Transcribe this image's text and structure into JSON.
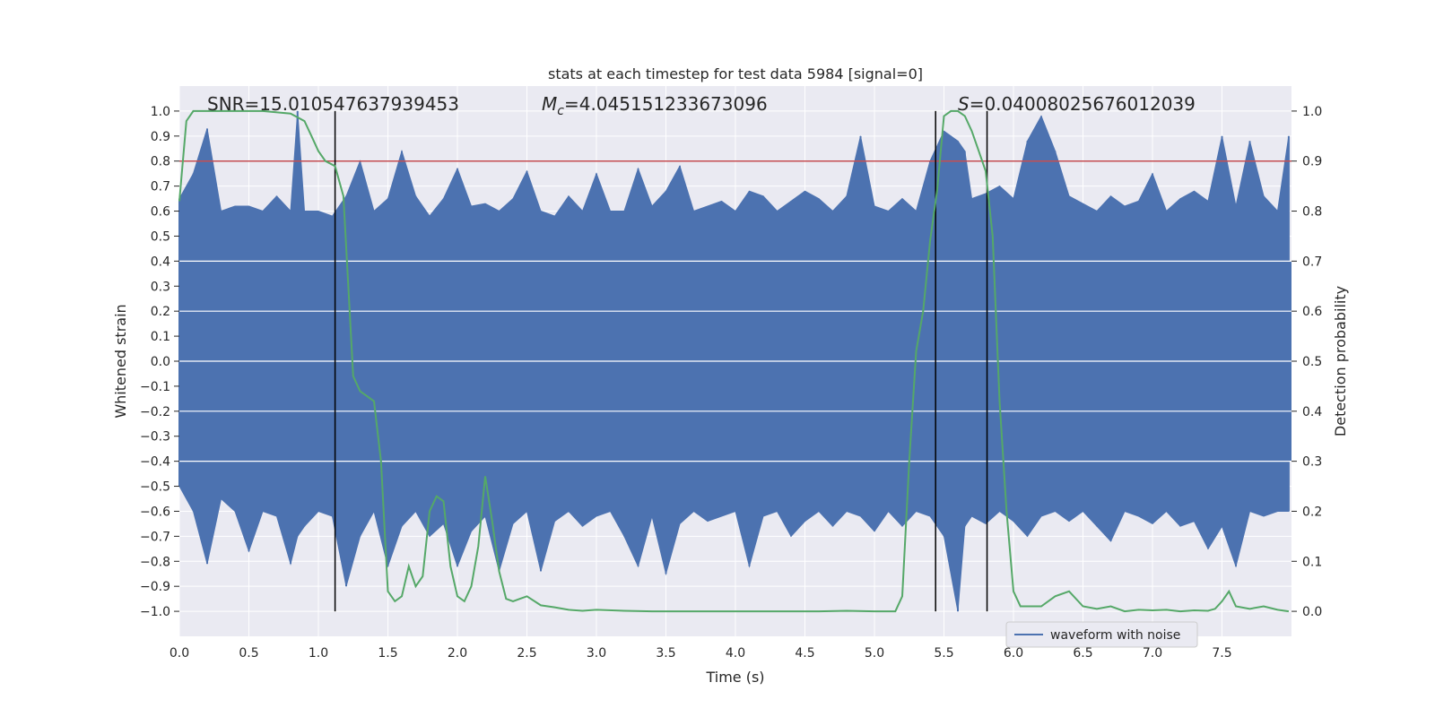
{
  "chart_data": {
    "type": "line",
    "title": "stats at each timestep for test data 5984 [signal=0]",
    "xlabel": "Time (s)",
    "ylabel_left": "Whitened strain",
    "ylabel_right": "Detection probability",
    "xlim": [
      0,
      8
    ],
    "ylim_left": [
      -1.1,
      1.1
    ],
    "ylim_right": [
      -0.05,
      1.05
    ],
    "xticks": [
      "0.0",
      "0.5",
      "1.0",
      "1.5",
      "2.0",
      "2.5",
      "3.0",
      "3.5",
      "4.0",
      "4.5",
      "5.0",
      "5.5",
      "6.0",
      "6.5",
      "7.0",
      "7.5"
    ],
    "yticks_left": [
      "−1.0",
      "−0.9",
      "−0.8",
      "−0.7",
      "−0.6",
      "−0.5",
      "−0.4",
      "−0.3",
      "−0.2",
      "−0.1",
      "0.0",
      "0.1",
      "0.2",
      "0.3",
      "0.4",
      "0.5",
      "0.6",
      "0.7",
      "0.8",
      "0.9",
      "1.0"
    ],
    "yticks_right": [
      "0.0",
      "0.1",
      "0.2",
      "0.3",
      "0.4",
      "0.5",
      "0.6",
      "0.7",
      "0.8",
      "0.9",
      "1.0"
    ],
    "grid": true,
    "legend_position": "lower-right",
    "annotations": {
      "snr": "SNR=15.010547637939453",
      "mc_symbol": "M",
      "mc_subscript": "c",
      "mc_value": "=4.045151233673096",
      "s_symbol": "S",
      "s_value": "=0.04008025676012039"
    },
    "threshold_right": 0.9,
    "vertical_lines_x": [
      1.12,
      5.44,
      5.81
    ],
    "series": [
      {
        "name": "waveform with noise",
        "color": "#4c72b0",
        "axis": "left",
        "x": [
          0.0,
          0.1,
          0.2,
          0.3,
          0.4,
          0.5,
          0.6,
          0.7,
          0.8,
          0.85,
          0.9,
          1.0,
          1.1,
          1.2,
          1.3,
          1.4,
          1.5,
          1.6,
          1.7,
          1.8,
          1.9,
          2.0,
          2.1,
          2.2,
          2.3,
          2.4,
          2.5,
          2.6,
          2.7,
          2.8,
          2.9,
          3.0,
          3.1,
          3.2,
          3.3,
          3.4,
          3.5,
          3.6,
          3.7,
          3.8,
          3.9,
          4.0,
          4.1,
          4.2,
          4.3,
          4.4,
          4.5,
          4.6,
          4.7,
          4.8,
          4.9,
          5.0,
          5.1,
          5.2,
          5.3,
          5.4,
          5.5,
          5.6,
          5.65,
          5.7,
          5.8,
          5.9,
          6.0,
          6.1,
          6.2,
          6.3,
          6.4,
          6.5,
          6.6,
          6.7,
          6.8,
          6.9,
          7.0,
          7.1,
          7.2,
          7.3,
          7.4,
          7.5,
          7.6,
          7.7,
          7.8,
          7.9,
          7.98
        ],
        "upper": [
          0.65,
          0.75,
          0.93,
          0.6,
          0.62,
          0.62,
          0.6,
          0.66,
          0.6,
          1.0,
          0.6,
          0.6,
          0.58,
          0.66,
          0.8,
          0.6,
          0.65,
          0.84,
          0.66,
          0.58,
          0.65,
          0.77,
          0.62,
          0.63,
          0.6,
          0.65,
          0.76,
          0.6,
          0.58,
          0.66,
          0.6,
          0.75,
          0.6,
          0.6,
          0.77,
          0.62,
          0.68,
          0.78,
          0.6,
          0.62,
          0.64,
          0.6,
          0.68,
          0.66,
          0.6,
          0.64,
          0.68,
          0.65,
          0.6,
          0.66,
          0.9,
          0.62,
          0.6,
          0.65,
          0.6,
          0.8,
          0.92,
          0.88,
          0.84,
          0.65,
          0.67,
          0.7,
          0.65,
          0.88,
          0.98,
          0.84,
          0.66,
          0.63,
          0.6,
          0.66,
          0.62,
          0.64,
          0.75,
          0.6,
          0.65,
          0.68,
          0.64,
          0.9,
          0.62,
          0.88,
          0.66,
          0.6,
          0.9
        ],
        "lower": [
          -0.5,
          -0.6,
          -0.81,
          -0.55,
          -0.6,
          -0.76,
          -0.6,
          -0.62,
          -0.81,
          -0.7,
          -0.66,
          -0.6,
          -0.62,
          -0.9,
          -0.7,
          -0.6,
          -0.82,
          -0.66,
          -0.6,
          -0.7,
          -0.65,
          -0.82,
          -0.68,
          -0.62,
          -0.84,
          -0.65,
          -0.6,
          -0.84,
          -0.64,
          -0.6,
          -0.66,
          -0.62,
          -0.6,
          -0.7,
          -0.82,
          -0.62,
          -0.85,
          -0.65,
          -0.6,
          -0.64,
          -0.62,
          -0.6,
          -0.82,
          -0.62,
          -0.6,
          -0.7,
          -0.64,
          -0.6,
          -0.66,
          -0.6,
          -0.62,
          -0.68,
          -0.6,
          -0.66,
          -0.6,
          -0.62,
          -0.7,
          -1.0,
          -0.66,
          -0.62,
          -0.65,
          -0.6,
          -0.64,
          -0.7,
          -0.62,
          -0.6,
          -0.64,
          -0.6,
          -0.66,
          -0.72,
          -0.6,
          -0.62,
          -0.65,
          -0.6,
          -0.66,
          -0.64,
          -0.75,
          -0.66,
          -0.82,
          -0.6,
          -0.62,
          -0.6,
          -0.6
        ]
      },
      {
        "name": "",
        "color": "#55a868",
        "axis": "right",
        "x": [
          0.0,
          0.05,
          0.1,
          0.2,
          0.4,
          0.6,
          0.8,
          0.9,
          0.95,
          1.0,
          1.05,
          1.12,
          1.18,
          1.25,
          1.3,
          1.35,
          1.4,
          1.45,
          1.5,
          1.55,
          1.6,
          1.65,
          1.7,
          1.75,
          1.8,
          1.85,
          1.9,
          1.95,
          2.0,
          2.05,
          2.1,
          2.15,
          2.2,
          2.25,
          2.3,
          2.35,
          2.4,
          2.45,
          2.5,
          2.6,
          2.7,
          2.8,
          2.9,
          3.0,
          3.2,
          3.4,
          3.6,
          3.8,
          4.0,
          4.2,
          4.4,
          4.6,
          4.8,
          5.0,
          5.1,
          5.15,
          5.2,
          5.25,
          5.3,
          5.35,
          5.4,
          5.45,
          5.5,
          5.55,
          5.6,
          5.65,
          5.7,
          5.75,
          5.8,
          5.85,
          5.9,
          5.95,
          6.0,
          6.05,
          6.1,
          6.2,
          6.3,
          6.4,
          6.5,
          6.6,
          6.7,
          6.8,
          6.9,
          7.0,
          7.1,
          7.2,
          7.3,
          7.4,
          7.45,
          7.5,
          7.55,
          7.6,
          7.7,
          7.8,
          7.9,
          7.98
        ],
        "values": [
          0.82,
          0.98,
          1.0,
          1.0,
          1.0,
          1.0,
          0.995,
          0.98,
          0.95,
          0.92,
          0.9,
          0.89,
          0.83,
          0.47,
          0.44,
          0.43,
          0.42,
          0.3,
          0.04,
          0.02,
          0.03,
          0.09,
          0.05,
          0.07,
          0.2,
          0.23,
          0.22,
          0.09,
          0.03,
          0.02,
          0.05,
          0.13,
          0.27,
          0.18,
          0.08,
          0.025,
          0.02,
          0.025,
          0.03,
          0.012,
          0.008,
          0.003,
          0.001,
          0.003,
          0.001,
          0.0,
          0.0,
          0.0,
          0.0,
          0.0,
          0.0,
          0.0,
          0.001,
          0.0,
          0.0,
          0.0,
          0.03,
          0.3,
          0.52,
          0.6,
          0.74,
          0.84,
          0.99,
          1.0,
          1.0,
          0.99,
          0.96,
          0.92,
          0.88,
          0.75,
          0.42,
          0.2,
          0.04,
          0.01,
          0.01,
          0.01,
          0.03,
          0.04,
          0.01,
          0.005,
          0.01,
          0.0,
          0.003,
          0.002,
          0.003,
          0.0,
          0.002,
          0.001,
          0.005,
          0.02,
          0.04,
          0.01,
          0.005,
          0.01,
          0.003,
          0.0
        ]
      }
    ],
    "colors": {
      "plot_background": "#eaeaf2",
      "grid": "#ffffff",
      "threshold": "#c44e52",
      "vertical_lines": "#000000"
    }
  }
}
